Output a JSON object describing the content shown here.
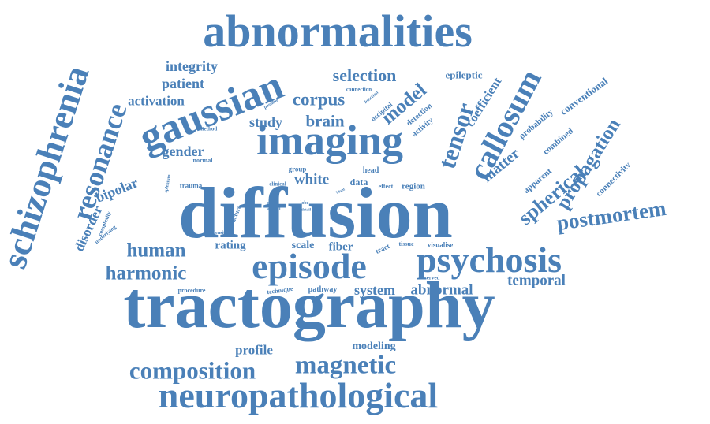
{
  "color": "#4a80b8",
  "words": [
    {
      "text": "diffusion"
    },
    {
      "text": "tractography"
    },
    {
      "text": "abnormalities"
    },
    {
      "text": "imaging"
    },
    {
      "text": "gaussian"
    },
    {
      "text": "schizophrenia"
    },
    {
      "text": "episode"
    },
    {
      "text": "psychosis"
    },
    {
      "text": "neuropathological"
    },
    {
      "text": "composition"
    },
    {
      "text": "magnetic"
    },
    {
      "text": "resonance"
    },
    {
      "text": "callosum"
    },
    {
      "text": "tensor"
    },
    {
      "text": "postmortem"
    },
    {
      "text": "harmonic"
    },
    {
      "text": "human"
    },
    {
      "text": "spherical"
    },
    {
      "text": "propagation"
    },
    {
      "text": "corpus"
    },
    {
      "text": "model"
    },
    {
      "text": "selection"
    },
    {
      "text": "brain"
    },
    {
      "text": "white"
    },
    {
      "text": "temporal"
    },
    {
      "text": "abnormal"
    },
    {
      "text": "system"
    },
    {
      "text": "integrity"
    },
    {
      "text": "patient"
    },
    {
      "text": "activation"
    },
    {
      "text": "gender"
    },
    {
      "text": "study"
    },
    {
      "text": "bipolar"
    },
    {
      "text": "disorder"
    },
    {
      "text": "coefficient"
    },
    {
      "text": "matter"
    },
    {
      "text": "profile"
    },
    {
      "text": "modeling"
    },
    {
      "text": "rating"
    },
    {
      "text": "fiber"
    },
    {
      "text": "scale"
    },
    {
      "text": "epileptic"
    },
    {
      "text": "conventional"
    },
    {
      "text": "probability"
    },
    {
      "text": "combined"
    },
    {
      "text": "apparent"
    },
    {
      "text": "connectivity"
    },
    {
      "text": "data"
    },
    {
      "text": "region"
    },
    {
      "text": "effect"
    },
    {
      "text": "head"
    },
    {
      "text": "group"
    },
    {
      "text": "clinical"
    },
    {
      "text": "trauma"
    },
    {
      "text": "normal"
    },
    {
      "text": "method"
    },
    {
      "text": "visualise"
    },
    {
      "text": "tissue"
    },
    {
      "text": "tract"
    },
    {
      "text": "density"
    },
    {
      "text": "order"
    },
    {
      "text": "axonal"
    },
    {
      "text": "lobe"
    },
    {
      "text": "detail"
    },
    {
      "text": "show"
    },
    {
      "text": "observed"
    },
    {
      "text": "technique"
    },
    {
      "text": "pathway"
    },
    {
      "text": "procedure"
    },
    {
      "text": "structure"
    },
    {
      "text": "complexity"
    },
    {
      "text": "underlying"
    },
    {
      "text": "splenium"
    },
    {
      "text": "connection"
    },
    {
      "text": "possible"
    },
    {
      "text": "function"
    },
    {
      "text": "occipital"
    },
    {
      "text": "detection"
    },
    {
      "text": "activity"
    },
    {
      "text": "blunt"
    }
  ]
}
